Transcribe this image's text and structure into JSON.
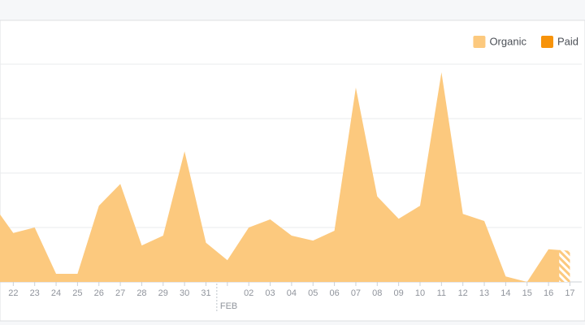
{
  "chart_data": {
    "type": "area",
    "categories": [
      null,
      "22",
      "23",
      "24",
      "25",
      "26",
      "27",
      "28",
      "29",
      "30",
      "31",
      "FEB",
      "02",
      "03",
      "04",
      "05",
      "06",
      "07",
      "08",
      "09",
      "10",
      "11",
      "12",
      "13",
      "14",
      "15",
      "16",
      "17"
    ],
    "series": [
      {
        "name": "Organic",
        "color": "#fcc97e",
        "values": [
          1.45,
          0.9,
          1.0,
          0.15,
          0.15,
          1.4,
          1.8,
          0.67,
          0.85,
          2.4,
          0.72,
          0.4,
          1.0,
          1.15,
          0.85,
          0.76,
          0.94,
          3.57,
          1.57,
          1.16,
          1.4,
          3.85,
          1.25,
          1.12,
          0.1,
          0,
          0.6,
          0.57
        ]
      },
      {
        "name": "Paid",
        "color": "#f7930a",
        "values": [
          0,
          0,
          0,
          0,
          0,
          0,
          0,
          0,
          0,
          0,
          0,
          0,
          0,
          0,
          0,
          0,
          0,
          0,
          0,
          0,
          0,
          0,
          0,
          0,
          0,
          0,
          0,
          0
        ]
      }
    ],
    "ylim": [
      0,
      5
    ],
    "yticks": [
      0,
      1,
      2,
      3,
      4
    ],
    "grid": true,
    "legend": "top-right"
  }
}
